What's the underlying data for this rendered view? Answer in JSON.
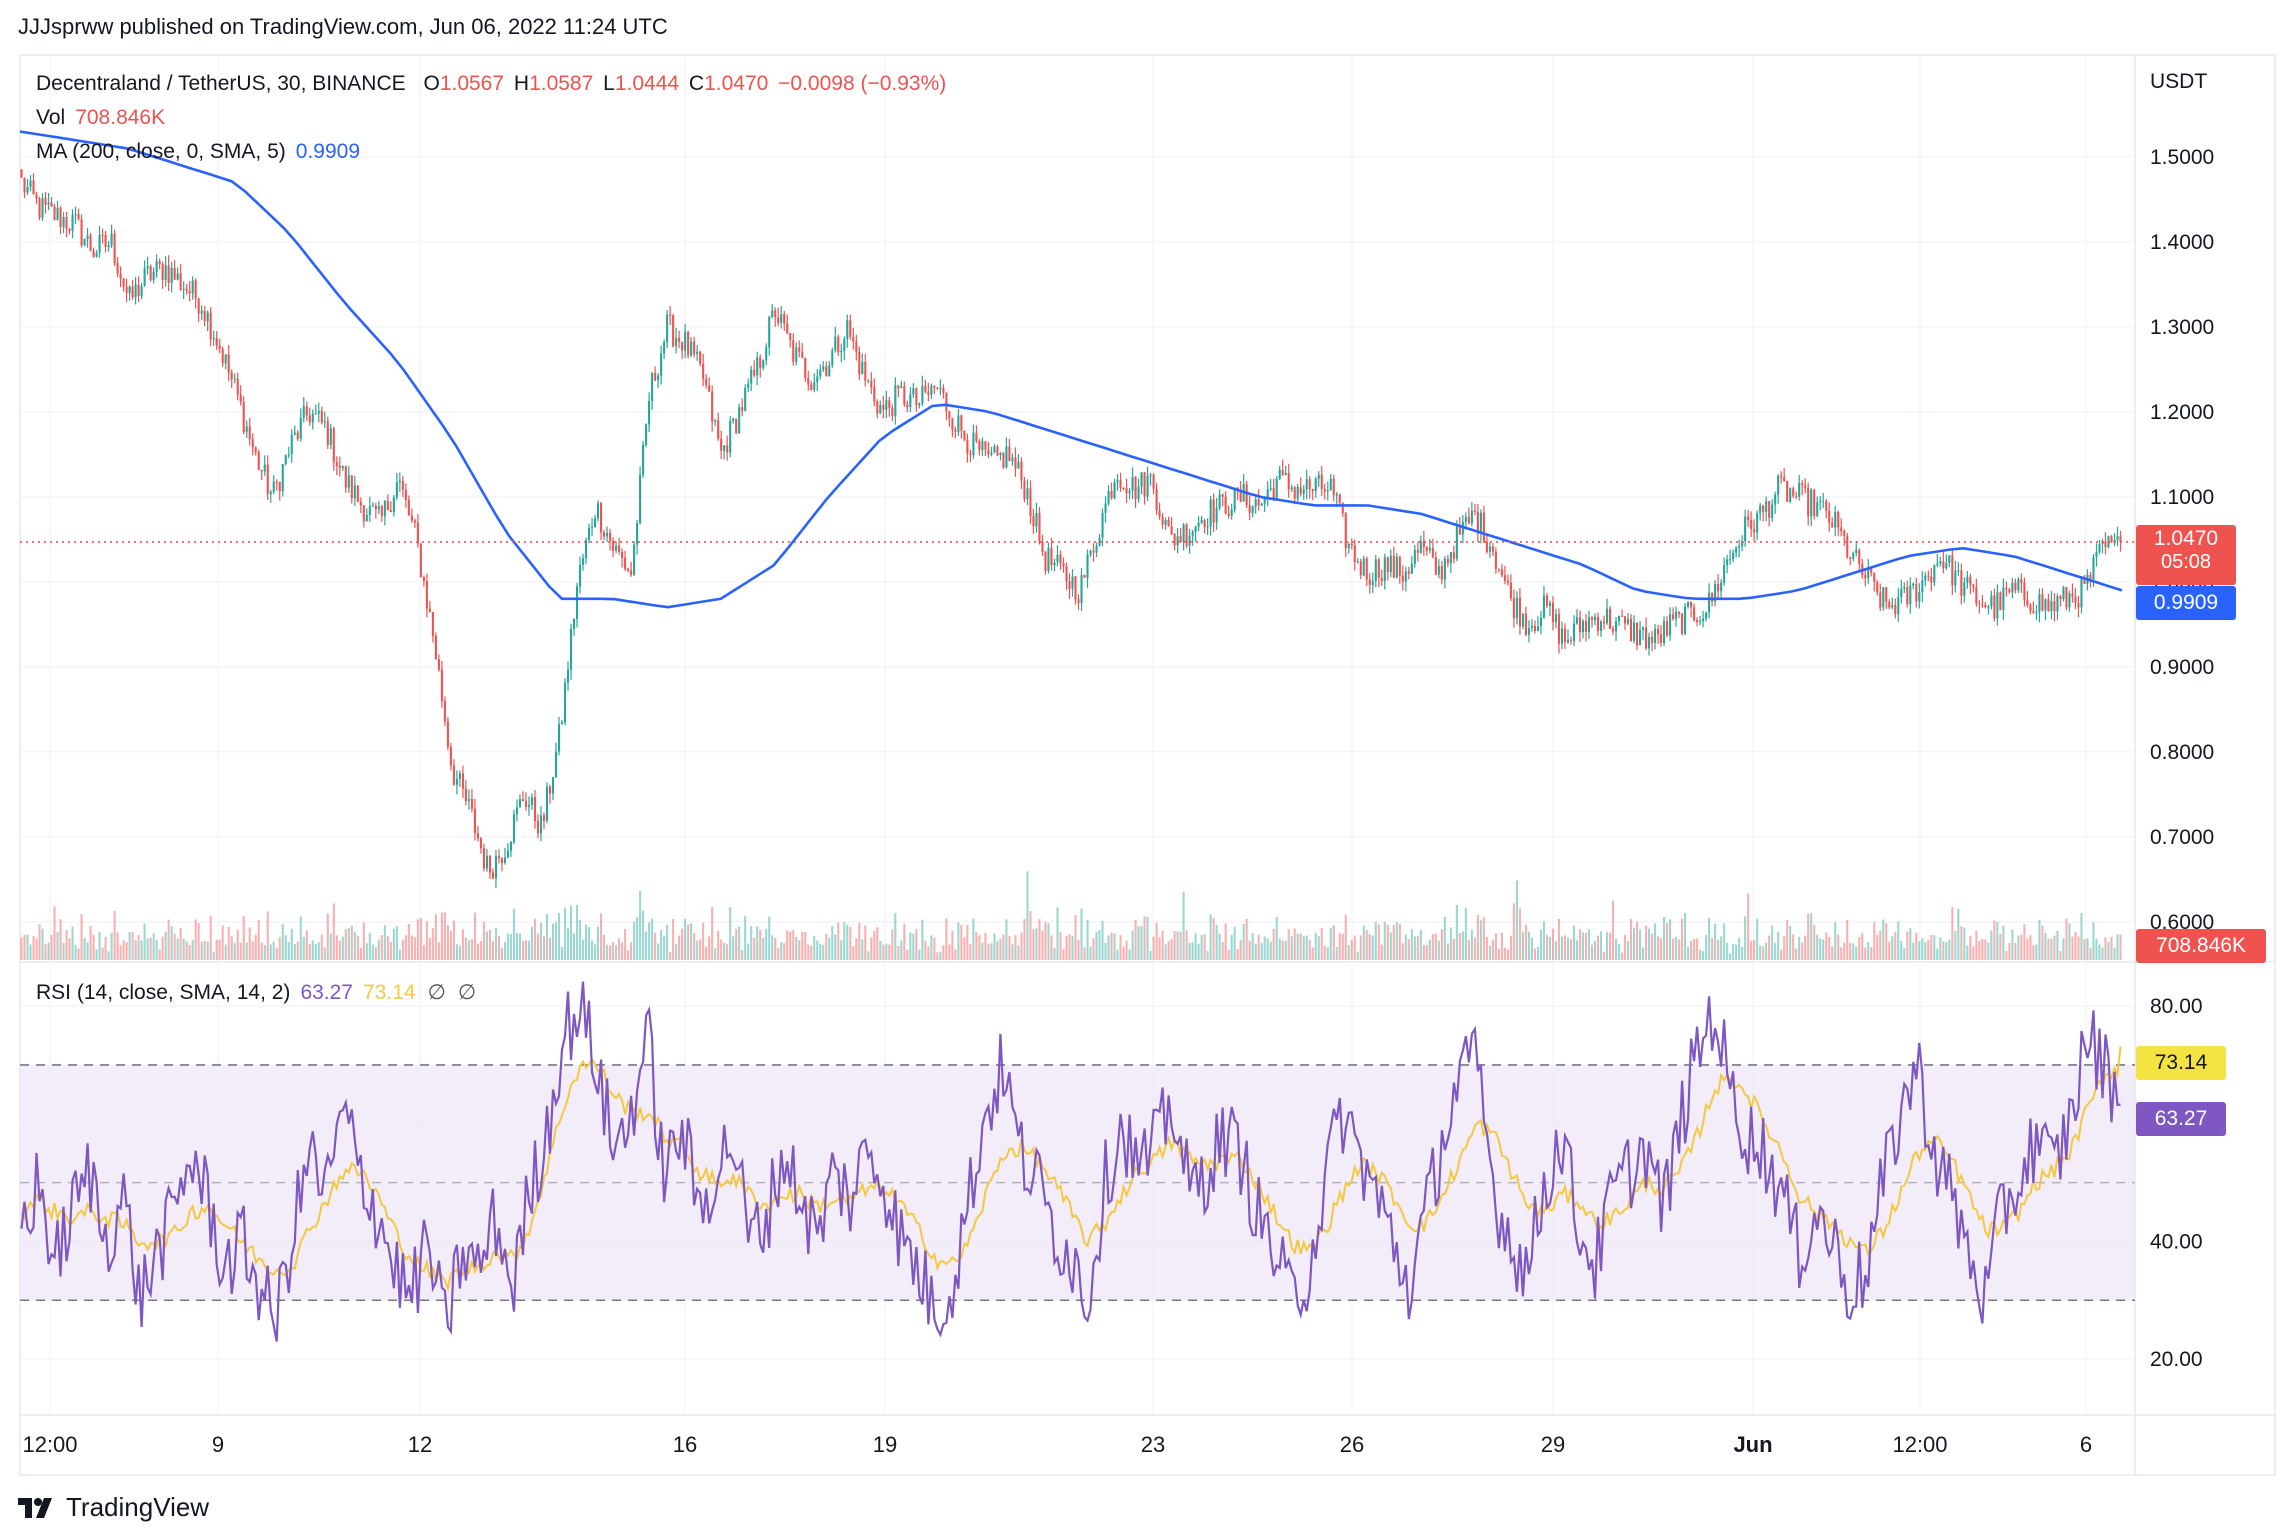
{
  "publisher_line": "JJJsprww published on TradingView.com, Jun 06, 2022 11:24 UTC",
  "footer_logo": "TradingView",
  "legend": {
    "symbol": "Decentraland / TetherUS, 30, BINANCE",
    "o_label": "O",
    "o": "1.0567",
    "h_label": "H",
    "h": "1.0587",
    "l_label": "L",
    "l": "1.0444",
    "c_label": "C",
    "c": "1.0470",
    "change": "−0.0098 (−0.93%)",
    "vol_label": "Vol",
    "vol": "708.846K",
    "ma_label": "MA (200, close, 0, SMA, 5)",
    "ma": "0.9909",
    "rsi_label": "RSI (14, close, SMA, 14, 2)",
    "rsi": "63.27",
    "rsi_ma": "73.14",
    "rsi_extra1": "∅",
    "rsi_extra2": "∅"
  },
  "price_labels": {
    "last": "1.0470",
    "countdown": "05:08",
    "ma": "0.9909",
    "vol": "708.846K",
    "rsi_ma": "73.14",
    "rsi": "63.27"
  },
  "colors": {
    "up": "#26a69a",
    "down": "#ef5350",
    "ma": "#2962ff",
    "rsi": "#7e57c2",
    "rsi_ma": "#f5c842",
    "rsi_band": "#ede7f6"
  },
  "chart_data": [
    {
      "type": "candlestick",
      "title": "Decentraland / TetherUS, 30, BINANCE",
      "y_axis_unit": "USDT",
      "yticks": [
        "1.5000",
        "1.4000",
        "1.3000",
        "1.2000",
        "1.1000",
        "1.0000",
        "0.9000",
        "0.8000",
        "0.7000",
        "0.6000"
      ],
      "ylim": [
        0.555,
        1.62
      ],
      "x_ticks": [
        "12:00",
        "9",
        "12",
        "16",
        "19",
        "23",
        "26",
        "29",
        "Jun",
        "12:00",
        "6"
      ],
      "close_path": [
        1.47,
        1.44,
        1.43,
        1.42,
        1.39,
        1.4,
        1.33,
        1.36,
        1.37,
        1.35,
        1.33,
        1.28,
        1.22,
        1.15,
        1.1,
        1.16,
        1.2,
        1.18,
        1.12,
        1.09,
        1.07,
        1.12,
        1.05,
        0.93,
        0.78,
        0.73,
        0.66,
        0.69,
        0.75,
        0.71,
        0.82,
        1.0,
        1.09,
        1.04,
        1.01,
        1.22,
        1.3,
        1.28,
        1.24,
        1.15,
        1.2,
        1.25,
        1.32,
        1.27,
        1.24,
        1.26,
        1.3,
        1.24,
        1.2,
        1.22,
        1.21,
        1.23,
        1.19,
        1.16,
        1.14,
        1.15,
        1.11,
        1.03,
        1.01,
        0.99,
        1.06,
        1.13,
        1.11,
        1.12,
        1.05,
        1.06,
        1.08,
        1.09,
        1.1,
        1.09,
        1.12,
        1.11,
        1.11,
        1.11,
        1.04,
        1.01,
        1.02,
        1.01,
        1.04,
        1.01,
        1.05,
        1.08,
        1.04,
        0.98,
        0.95,
        0.97,
        0.93,
        0.95,
        0.96,
        0.95,
        0.94,
        0.93,
        0.95,
        0.96,
        0.97,
        1.02,
        1.06,
        1.08,
        1.11,
        1.1,
        1.09,
        1.07,
        1.03,
        1.0,
        0.97,
        0.98,
        1.0,
        1.03,
        1.0,
        0.98,
        0.97,
        0.99,
        0.98,
        0.97,
        0.98,
        0.99,
        1.04,
        1.04
      ],
      "ma_path": [
        1.53,
        1.52,
        1.51,
        1.49,
        1.47,
        1.41,
        1.33,
        1.26,
        1.17,
        1.06,
        0.98,
        0.98,
        0.97,
        0.98,
        1.02,
        1.1,
        1.17,
        1.21,
        1.2,
        1.18,
        1.16,
        1.14,
        1.12,
        1.1,
        1.09,
        1.09,
        1.08,
        1.06,
        1.04,
        1.02,
        0.99,
        0.98,
        0.98,
        0.99,
        1.01,
        1.03,
        1.04,
        1.03,
        1.01,
        0.99
      ],
      "volume": {
        "last": "708.846K"
      }
    },
    {
      "type": "line",
      "title": "RSI (14, close, SMA, 14, 2)",
      "yticks": [
        "80.00",
        "60.00",
        "40.00",
        "20.00"
      ],
      "ylim": [
        11,
        87
      ],
      "bands": [
        70,
        50,
        30
      ],
      "series": [
        {
          "name": "RSI",
          "last": 63.27,
          "values": [
            42,
            50,
            36,
            45,
            52,
            40,
            48,
            30,
            38,
            44,
            55,
            47,
            35,
            40,
            33,
            26,
            41,
            55,
            48,
            62,
            52,
            45,
            36,
            30,
            40,
            25,
            38,
            35,
            44,
            32,
            48,
            58,
            75,
            80,
            70,
            55,
            62,
            75,
            50,
            60,
            45,
            52,
            58,
            40,
            44,
            55,
            48,
            40,
            52,
            47,
            56,
            50,
            40,
            35,
            28,
            33,
            48,
            62,
            70,
            55,
            50,
            42,
            38,
            30,
            50,
            60,
            52,
            56,
            64,
            48,
            52,
            58,
            55,
            45,
            38,
            30,
            35,
            50,
            62,
            55,
            48,
            40,
            32,
            45,
            58,
            68,
            70,
            48,
            40,
            35,
            50,
            58,
            42,
            36,
            48,
            52,
            56,
            45,
            60,
            72,
            80,
            65,
            58,
            55,
            48,
            38,
            45,
            40,
            32,
            35,
            50,
            62,
            70,
            55,
            48,
            38,
            30,
            45,
            50,
            58,
            52,
            60,
            75,
            70,
            64
          ]
        },
        {
          "name": "RSI-based MA",
          "last": 73.14,
          "values": [
            45,
            47,
            45,
            44,
            45,
            44,
            43,
            40,
            40,
            41,
            45,
            46,
            43,
            40,
            37,
            35,
            36,
            42,
            47,
            52,
            52,
            48,
            42,
            37,
            35,
            33,
            35,
            36,
            38,
            37,
            42,
            52,
            63,
            70,
            70,
            65,
            62,
            62,
            58,
            56,
            52,
            50,
            51,
            48,
            46,
            48,
            48,
            46,
            47,
            47,
            49,
            49,
            46,
            42,
            37,
            36,
            40,
            48,
            55,
            56,
            54,
            50,
            45,
            40,
            43,
            48,
            52,
            54,
            57,
            54,
            53,
            54,
            54,
            50,
            45,
            40,
            38,
            42,
            48,
            53,
            52,
            48,
            43,
            43,
            48,
            54,
            60,
            58,
            52,
            46,
            45,
            48,
            47,
            43,
            44,
            47,
            50,
            49,
            52,
            58,
            66,
            68,
            65,
            60,
            55,
            48,
            45,
            43,
            40,
            38,
            42,
            48,
            55,
            57,
            54,
            48,
            42,
            42,
            45,
            50,
            52,
            55,
            62,
            68,
            70
          ]
        }
      ]
    }
  ]
}
